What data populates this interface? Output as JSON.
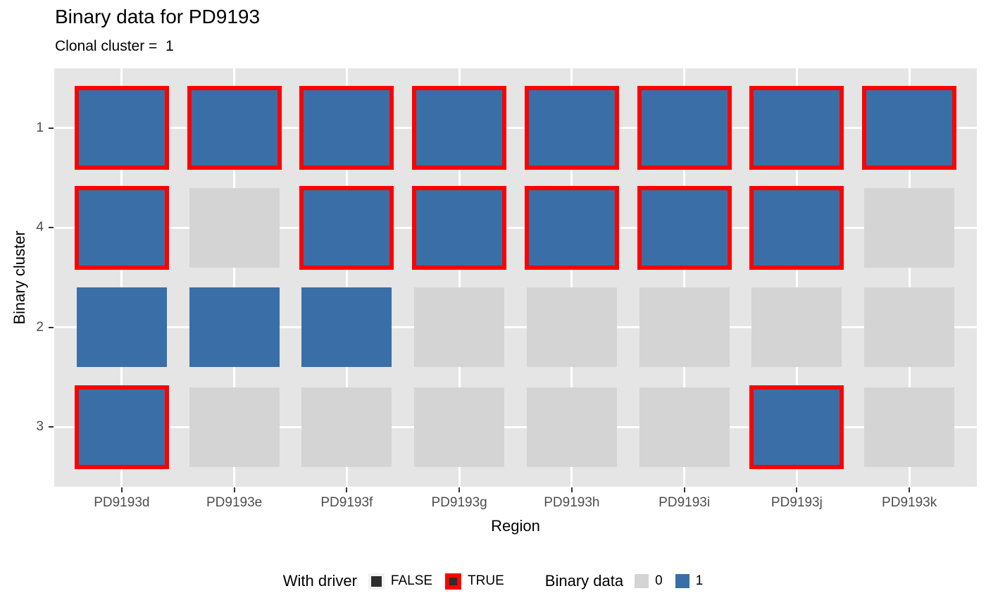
{
  "title": "Binary data for PD9193",
  "subtitle": "Clonal cluster =  1",
  "colors": {
    "panel_bg": "#E5E5E5",
    "grid": "#FFFFFF",
    "tile_zero": "#D4D4D4",
    "tile_one": "#396FA6",
    "driver_border": "#FF0000",
    "legend_dark": "#2D2D2D",
    "legend_key_bg": "#F2F2F2",
    "tick": "#333333",
    "tick_label": "#4D4D4D"
  },
  "chart_data": {
    "type": "heatmap",
    "title": "Binary data for PD9193",
    "subtitle": "Clonal cluster =  1",
    "xlabel": "Region",
    "ylabel": "Binary cluster",
    "x_categories": [
      "PD9193d",
      "PD9193e",
      "PD9193f",
      "PD9193g",
      "PD9193h",
      "PD9193i",
      "PD9193j",
      "PD9193k"
    ],
    "y_categories": [
      "1",
      "4",
      "2",
      "3"
    ],
    "binary_values": [
      [
        1,
        1,
        1,
        1,
        1,
        1,
        1,
        1
      ],
      [
        1,
        0,
        1,
        1,
        1,
        1,
        1,
        0
      ],
      [
        1,
        1,
        1,
        0,
        0,
        0,
        0,
        0
      ],
      [
        1,
        0,
        0,
        0,
        0,
        0,
        1,
        0
      ]
    ],
    "with_driver": [
      [
        true,
        true,
        true,
        true,
        true,
        true,
        true,
        true
      ],
      [
        true,
        false,
        true,
        true,
        true,
        true,
        true,
        false
      ],
      [
        false,
        false,
        false,
        false,
        false,
        false,
        false,
        false
      ],
      [
        true,
        false,
        false,
        false,
        false,
        false,
        true,
        false
      ]
    ],
    "grid": true,
    "legend_position": "bottom"
  },
  "legend": {
    "driver": {
      "title": "With driver",
      "false_label": "FALSE",
      "true_label": "TRUE"
    },
    "binary": {
      "title": "Binary data",
      "zero_label": "0",
      "one_label": "1"
    }
  }
}
